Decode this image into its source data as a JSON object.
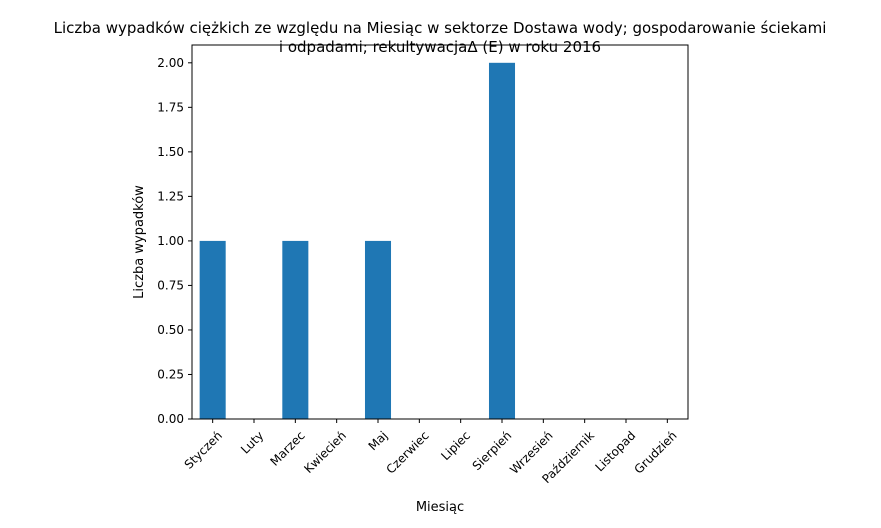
{
  "chart_data": {
    "type": "bar",
    "title_lines": [
      "Liczba wypadków ciężkich ze względu na Miesiąc w sektorze Dostawa wody; gospodarowanie ściekami",
      "i odpadami;  rekultywacjaΔ  (E) w roku 2016"
    ],
    "xlabel": "Miesiąc",
    "ylabel": "Liczba wypadków",
    "categories": [
      "Styczeń",
      "Luty",
      "Marzec",
      "Kwiecień",
      "Maj",
      "Czerwiec",
      "Lipiec",
      "Sierpień",
      "Wrzesień",
      "Październik",
      "Listopad",
      "Grudzień"
    ],
    "values": [
      1,
      0,
      1,
      0,
      1,
      0,
      0,
      2,
      0,
      0,
      0,
      0
    ],
    "ylim": [
      0,
      2.1
    ],
    "yticks": [
      0,
      0.25,
      0.5,
      0.75,
      1.0,
      1.25,
      1.5,
      1.75,
      2.0
    ],
    "ytick_labels": [
      "0.00",
      "0.25",
      "0.50",
      "0.75",
      "1.00",
      "1.25",
      "1.50",
      "1.75",
      "2.00"
    ],
    "grid": false,
    "bar_color": "#1f77b4"
  }
}
